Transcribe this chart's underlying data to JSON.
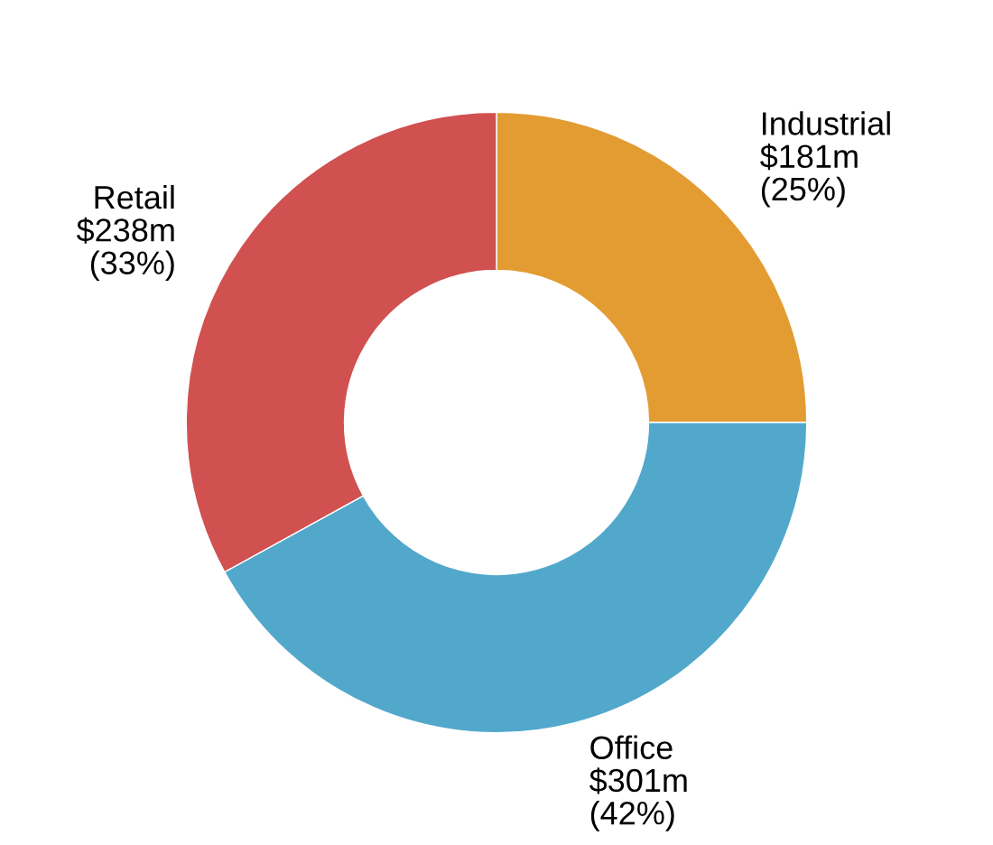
{
  "chart_data": {
    "type": "donut",
    "categories": [
      "Industrial",
      "Office",
      "Retail"
    ],
    "values": [
      25,
      42,
      33
    ],
    "value_labels": [
      "$181m\n(25%)",
      "$301m\n(42%)",
      "$238m\n(33%)"
    ],
    "colors": [
      "#e39c32",
      "#52a8cb",
      "#d05150"
    ],
    "legend": false
  }
}
